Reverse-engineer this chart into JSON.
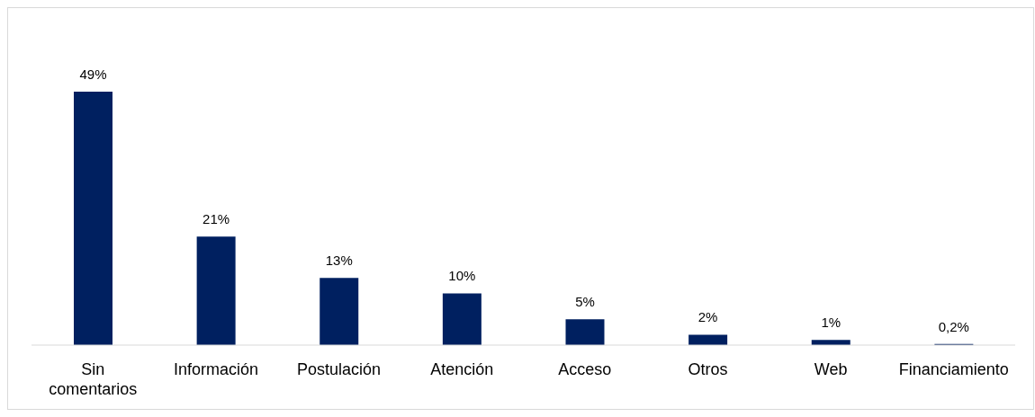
{
  "chart_data": {
    "type": "bar",
    "categories": [
      "Sin comentarios",
      "Información",
      "Postulación",
      "Atención",
      "Acceso",
      "Otros",
      "Web",
      "Financiamiento"
    ],
    "values": [
      49,
      21,
      13,
      10,
      5,
      2,
      1,
      0.2
    ],
    "color": "#002060",
    "value_labels": [
      "49%",
      "21%",
      "13%",
      "10%",
      "5%",
      "2%",
      "1%",
      "0,2%"
    ],
    "tick_labels": "x"
  }
}
